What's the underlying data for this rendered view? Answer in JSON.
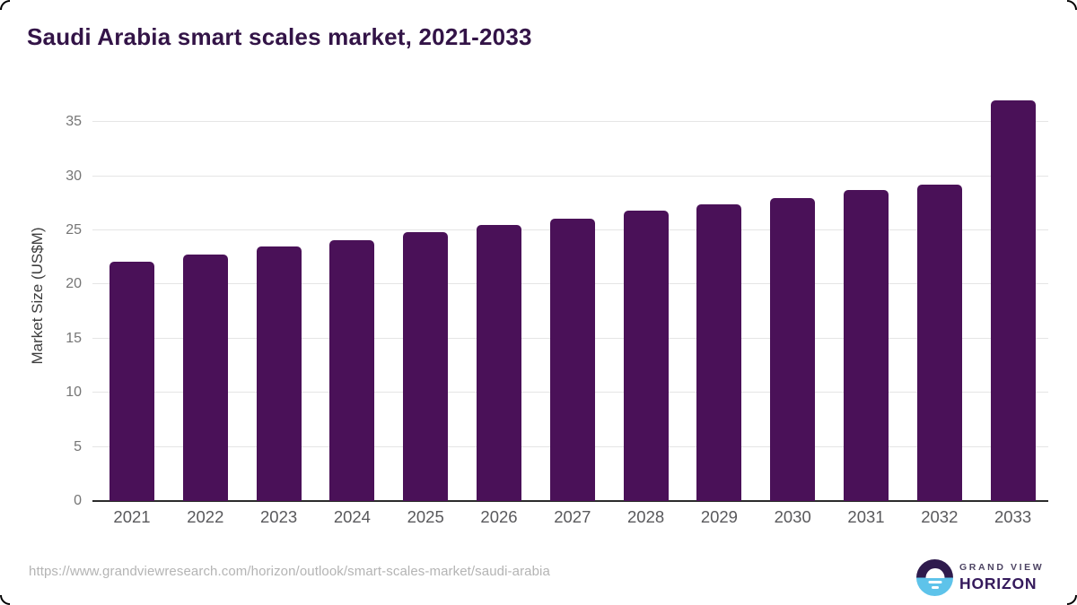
{
  "title": "Saudi Arabia smart scales market, 2021-2033",
  "chart_data": {
    "type": "bar",
    "title": "Saudi Arabia smart scales market, 2021-2033",
    "categories": [
      "2021",
      "2022",
      "2023",
      "2024",
      "2025",
      "2026",
      "2027",
      "2028",
      "2029",
      "2030",
      "2031",
      "2032",
      "2033"
    ],
    "values": [
      22.1,
      22.8,
      23.5,
      24.1,
      24.8,
      25.5,
      26.1,
      26.8,
      27.4,
      28.0,
      28.7,
      29.2,
      37.0
    ],
    "xlabel": "",
    "ylabel": "Market Size (US$M)",
    "y_ticks": [
      0,
      5,
      10,
      15,
      20,
      25,
      30,
      35
    ],
    "ylim": [
      0,
      38
    ],
    "grid": true,
    "legend": false,
    "bar_color": "#4a1158"
  },
  "footer": {
    "source_url": "https://www.grandviewresearch.com/horizon/outlook/smart-scales-market/saudi-arabia",
    "logo": {
      "line1": "GRAND VIEW",
      "line2": "HORIZON"
    }
  },
  "colors": {
    "title": "#331447",
    "bar": "#4a1158",
    "axis_line": "#2b2b2b",
    "gridline": "#e5e5e5",
    "y_tick_text": "#757575",
    "x_tick_text": "#59595c",
    "url_text": "#b4b4b4",
    "logo_purple": "#2f1b4d",
    "logo_blue": "#5ec3ea"
  }
}
